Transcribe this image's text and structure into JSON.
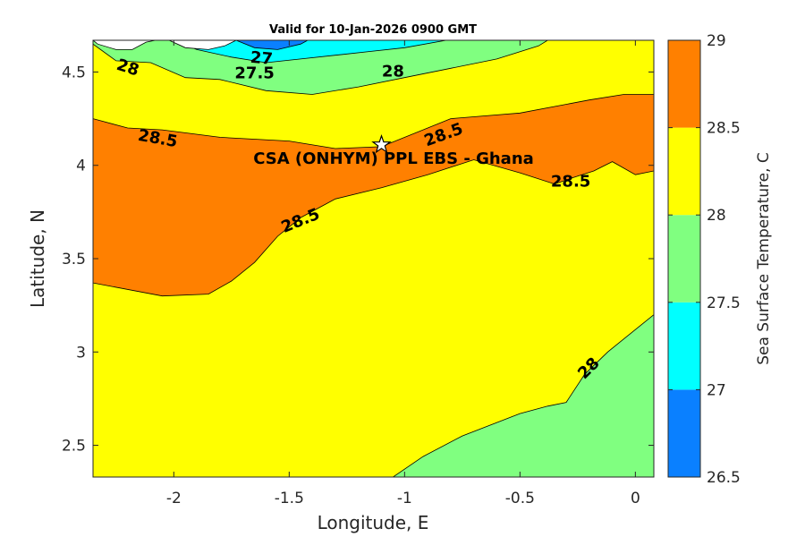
{
  "chart_data": {
    "type": "contour",
    "title": "Valid for 10-Jan-2026 0900 GMT",
    "xlabel": "Longitude, E",
    "ylabel": "Latitude, N",
    "xlim": [
      -2.35,
      0.08
    ],
    "ylim": [
      2.33,
      4.67
    ],
    "xticks": [
      -2,
      -1.5,
      -1,
      -0.5,
      0
    ],
    "xtick_labels": [
      "-2",
      "-1.5",
      "-1",
      "-0.5",
      "0"
    ],
    "yticks": [
      2.5,
      3,
      3.5,
      4,
      4.5
    ],
    "ytick_labels": [
      "2.5",
      "3",
      "3.5",
      "4",
      "4.5"
    ],
    "colorbar": {
      "label": "Sea Surface Temperature, C",
      "ticks": [
        26.5,
        27,
        27.5,
        28,
        28.5,
        29
      ],
      "tick_labels": [
        "26.5",
        "27",
        "27.5",
        "28",
        "28.5",
        "29"
      ],
      "bands": [
        {
          "from": 26.5,
          "to": 27,
          "color": "#0a80ff"
        },
        {
          "from": 27,
          "to": 27.5,
          "color": "#00ffff"
        },
        {
          "from": 27.5,
          "to": 28,
          "color": "#80ff80"
        },
        {
          "from": 28,
          "to": 28.5,
          "color": "#ffff00"
        },
        {
          "from": 28.5,
          "to": 29,
          "color": "#ff8000"
        }
      ]
    },
    "regions": [
      {
        "level": "28-28.5",
        "color": "#ffff00",
        "points": [
          [
            -2.35,
            2.33
          ],
          [
            0.08,
            2.33
          ],
          [
            0.08,
            4.67
          ],
          [
            -2.35,
            4.67
          ]
        ]
      },
      {
        "level": "27.5-28 (southeast)",
        "color": "#80ff80",
        "points": [
          [
            -1.05,
            2.33
          ],
          [
            0.08,
            2.33
          ],
          [
            0.08,
            3.2
          ],
          [
            -0.02,
            3.1
          ],
          [
            -0.12,
            3.0
          ],
          [
            -0.22,
            2.88
          ],
          [
            -0.3,
            2.73
          ],
          [
            -0.38,
            2.71
          ],
          [
            -0.5,
            2.67
          ],
          [
            -0.75,
            2.55
          ],
          [
            -0.92,
            2.44
          ],
          [
            -1.05,
            2.33
          ]
        ]
      },
      {
        "level": "28.5-29",
        "color": "#ff8000",
        "points": [
          [
            -2.35,
            4.25
          ],
          [
            -2.2,
            4.2
          ],
          [
            -2.05,
            4.19
          ],
          [
            -1.8,
            4.15
          ],
          [
            -1.5,
            4.13
          ],
          [
            -1.3,
            4.09
          ],
          [
            -1.1,
            4.1
          ],
          [
            -0.8,
            4.25
          ],
          [
            -0.5,
            4.28
          ],
          [
            -0.2,
            4.35
          ],
          [
            -0.05,
            4.38
          ],
          [
            0.08,
            4.38
          ],
          [
            0.08,
            3.97
          ],
          [
            0.0,
            3.95
          ],
          [
            -0.1,
            4.02
          ],
          [
            -0.18,
            3.97
          ],
          [
            -0.28,
            3.93
          ],
          [
            -0.35,
            3.9
          ],
          [
            -0.5,
            3.96
          ],
          [
            -0.7,
            4.03
          ],
          [
            -0.9,
            3.95
          ],
          [
            -1.1,
            3.88
          ],
          [
            -1.3,
            3.82
          ],
          [
            -1.45,
            3.72
          ],
          [
            -1.55,
            3.62
          ],
          [
            -1.65,
            3.48
          ],
          [
            -1.75,
            3.38
          ],
          [
            -1.85,
            3.31
          ],
          [
            -2.05,
            3.3
          ],
          [
            -2.35,
            3.37
          ]
        ]
      },
      {
        "level": "27.5-28 (north)",
        "color": "#80ff80",
        "points": [
          [
            -2.35,
            4.67
          ],
          [
            -2.35,
            4.65
          ],
          [
            -2.25,
            4.56
          ],
          [
            -2.1,
            4.55
          ],
          [
            -1.95,
            4.47
          ],
          [
            -1.8,
            4.46
          ],
          [
            -1.6,
            4.4
          ],
          [
            -1.4,
            4.38
          ],
          [
            -1.2,
            4.42
          ],
          [
            -1.0,
            4.47
          ],
          [
            -0.8,
            4.52
          ],
          [
            -0.6,
            4.57
          ],
          [
            -0.42,
            4.64
          ],
          [
            -0.38,
            4.67
          ]
        ]
      },
      {
        "level": "27-27.5",
        "color": "#00ffff",
        "points": [
          [
            -2.0,
            4.67
          ],
          [
            -1.9,
            4.62
          ],
          [
            -1.75,
            4.58
          ],
          [
            -1.6,
            4.55
          ],
          [
            -1.45,
            4.57
          ],
          [
            -1.3,
            4.59
          ],
          [
            -1.15,
            4.61
          ],
          [
            -1.0,
            4.63
          ],
          [
            -0.82,
            4.67
          ]
        ]
      },
      {
        "level": "26.5-27",
        "color": "#0a80ff",
        "points": [
          [
            -1.73,
            4.67
          ],
          [
            -1.65,
            4.63
          ],
          [
            -1.55,
            4.62
          ],
          [
            -1.45,
            4.65
          ],
          [
            -1.42,
            4.67
          ]
        ]
      },
      {
        "level": "no data",
        "color": "#ffffff",
        "points": [
          [
            -2.35,
            4.67
          ],
          [
            -2.33,
            4.65
          ],
          [
            -2.25,
            4.62
          ],
          [
            -2.18,
            4.62
          ],
          [
            -2.12,
            4.66
          ],
          [
            -2.08,
            4.67
          ]
        ]
      },
      {
        "level": "no data",
        "color": "#ffffff",
        "points": [
          [
            -2.02,
            4.67
          ],
          [
            -1.95,
            4.63
          ],
          [
            -1.85,
            4.62
          ],
          [
            -1.78,
            4.64
          ],
          [
            -1.73,
            4.67
          ]
        ]
      }
    ],
    "contour_labels": [
      {
        "text": "27",
        "x": -1.62,
        "y": 4.57,
        "rotate": 5
      },
      {
        "text": "27.5",
        "x": -1.65,
        "y": 4.49,
        "rotate": 0
      },
      {
        "text": "28",
        "x": -2.2,
        "y": 4.52,
        "rotate": 18
      },
      {
        "text": "28",
        "x": -1.05,
        "y": 4.5,
        "rotate": 0
      },
      {
        "text": "28.5",
        "x": -2.07,
        "y": 4.14,
        "rotate": 10
      },
      {
        "text": "28.5",
        "x": -0.83,
        "y": 4.16,
        "rotate": -20
      },
      {
        "text": "28.5",
        "x": -0.28,
        "y": 3.91,
        "rotate": 0
      },
      {
        "text": "28.5",
        "x": -1.45,
        "y": 3.7,
        "rotate": -22
      },
      {
        "text": "28",
        "x": -0.2,
        "y": 2.91,
        "rotate": -45
      }
    ],
    "site_label": "CSA (ONHYM) PPL EBS  - Ghana",
    "site_point": {
      "x": -1.1,
      "y": 4.11
    }
  }
}
